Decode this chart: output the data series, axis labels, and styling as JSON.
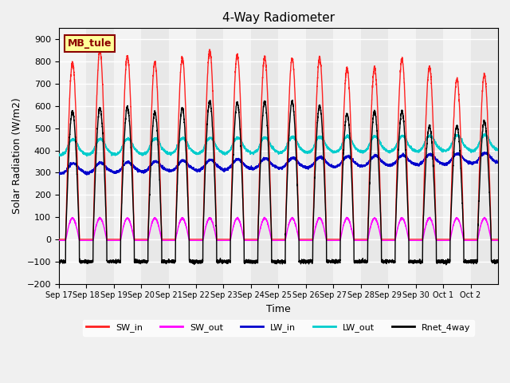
{
  "title": "4-Way Radiometer",
  "xlabel": "Time",
  "ylabel": "Solar Radiation (W/m2)",
  "ylim": [
    -200,
    950
  ],
  "yticks": [
    -200,
    -100,
    0,
    100,
    200,
    300,
    400,
    500,
    600,
    700,
    800,
    900
  ],
  "x_tick_positions": [
    0,
    1,
    2,
    3,
    4,
    5,
    6,
    7,
    8,
    9,
    10,
    11,
    12,
    13,
    14,
    15
  ],
  "x_labels": [
    "Sep 17",
    "Sep 18",
    "Sep 19",
    "Sep 20",
    "Sep 21",
    "Sep 22",
    "Sep 23",
    "Sep 24",
    "Sep 25",
    "Sep 26",
    "Sep 27",
    "Sep 28",
    "Sep 29",
    "Sep 30",
    "Oct 1",
    "Oct 2"
  ],
  "station_label": "MB_tule",
  "colors": {
    "SW_in": "#FF2020",
    "SW_out": "#FF00FF",
    "LW_in": "#0000CC",
    "LW_out": "#00CCCC",
    "Rnet_4way": "#000000"
  },
  "legend_entries": [
    "SW_in",
    "SW_out",
    "LW_in",
    "LW_out",
    "Rnet_4way"
  ],
  "bg_color": "#E8E8E8",
  "grid_color": "#FFFFFF",
  "n_days": 16,
  "pts_per_day": 288
}
